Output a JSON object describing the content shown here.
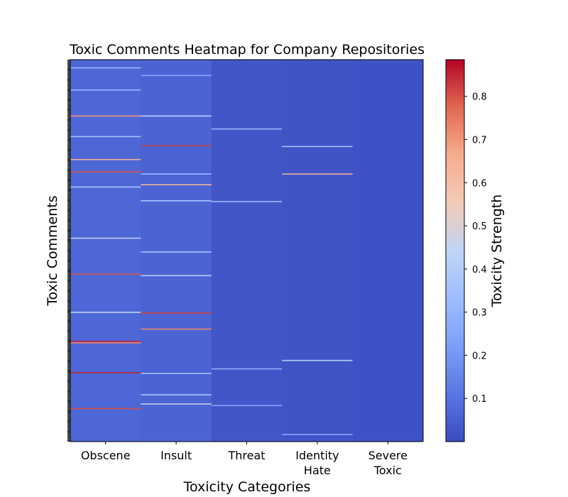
{
  "chart_data": {
    "type": "heatmap",
    "title": "Toxic Comments Heatmap for Company Repositories",
    "xlabel": "Toxicity Categories",
    "ylabel": "Toxic Comments",
    "categories": [
      "Obscene",
      "Insult",
      "Threat",
      "Identity\nHate",
      "Severe\nToxic"
    ],
    "colorbar": {
      "label": "Toxicity Strength",
      "range": [
        0.0,
        0.885
      ],
      "ticks": [
        0.1,
        0.2,
        0.3,
        0.4,
        0.5,
        0.6,
        0.7,
        0.8
      ],
      "colormap": "coolwarm"
    },
    "n_rows": 500,
    "baseline_values": [
      0.07,
      0.06,
      0.025,
      0.02,
      0.015
    ],
    "highlights": [
      {
        "row": 10,
        "col": 0,
        "value": 0.3
      },
      {
        "row": 20,
        "col": 1,
        "value": 0.25
      },
      {
        "row": 39,
        "col": 0,
        "value": 0.32
      },
      {
        "row": 73,
        "col": 0,
        "value": 0.7
      },
      {
        "row": 73,
        "col": 1,
        "value": 0.42
      },
      {
        "row": 90,
        "col": 2,
        "value": 0.3
      },
      {
        "row": 100,
        "col": 0,
        "value": 0.35
      },
      {
        "row": 112,
        "col": 1,
        "value": 0.82
      },
      {
        "row": 113,
        "col": 3,
        "value": 0.36
      },
      {
        "row": 130,
        "col": 0,
        "value": 0.65
      },
      {
        "row": 146,
        "col": 0,
        "value": 0.8
      },
      {
        "row": 149,
        "col": 3,
        "value": 0.65
      },
      {
        "row": 149,
        "col": 1,
        "value": 0.33
      },
      {
        "row": 163,
        "col": 1,
        "value": 0.62
      },
      {
        "row": 166,
        "col": 0,
        "value": 0.38
      },
      {
        "row": 184,
        "col": 1,
        "value": 0.37
      },
      {
        "row": 185,
        "col": 2,
        "value": 0.33
      },
      {
        "row": 233,
        "col": 0,
        "value": 0.45
      },
      {
        "row": 251,
        "col": 1,
        "value": 0.36
      },
      {
        "row": 280,
        "col": 0,
        "value": 0.8
      },
      {
        "row": 282,
        "col": 1,
        "value": 0.42
      },
      {
        "row": 330,
        "col": 0,
        "value": 0.45
      },
      {
        "row": 331,
        "col": 1,
        "value": 0.82
      },
      {
        "row": 352,
        "col": 1,
        "value": 0.72
      },
      {
        "row": 368,
        "col": 0,
        "value": 0.85
      },
      {
        "row": 370,
        "col": 0,
        "value": 0.72
      },
      {
        "row": 393,
        "col": 3,
        "value": 0.42
      },
      {
        "row": 404,
        "col": 2,
        "value": 0.3
      },
      {
        "row": 409,
        "col": 0,
        "value": 0.85
      },
      {
        "row": 410,
        "col": 1,
        "value": 0.35
      },
      {
        "row": 438,
        "col": 1,
        "value": 0.38
      },
      {
        "row": 450,
        "col": 1,
        "value": 0.45
      },
      {
        "row": 452,
        "col": 2,
        "value": 0.25
      },
      {
        "row": 456,
        "col": 0,
        "value": 0.8
      },
      {
        "row": 490,
        "col": 3,
        "value": 0.25
      }
    ]
  }
}
